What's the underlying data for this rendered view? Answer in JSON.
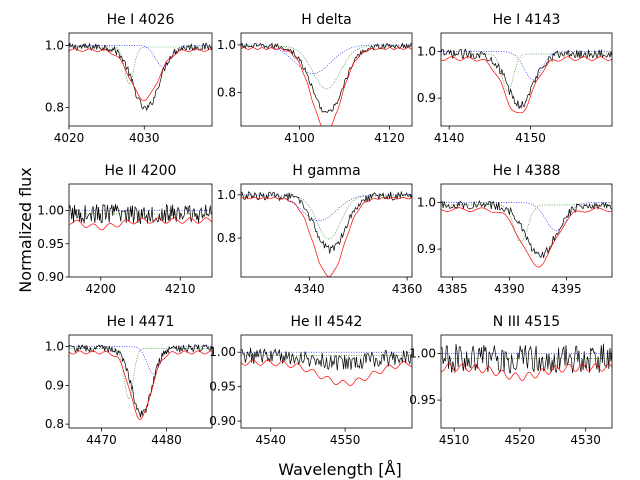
{
  "figure": {
    "xlabel": "Wavelength [Å]",
    "ylabel": "Normalized flux"
  },
  "chart_data": [
    {
      "type": "line",
      "title": "He I 4026",
      "center": 4030.0,
      "xlim": [
        4020,
        4039
      ],
      "ylim": [
        0.74,
        1.04
      ],
      "xticks": [
        4020,
        4030
      ],
      "yticks": [
        0.8,
        1.0
      ],
      "ytick_labels": [
        "0.8",
        "1.0"
      ],
      "obs_depth": 0.2,
      "obs_width": 1.7,
      "obs_noise": 0.012,
      "red_depth": 0.16,
      "red_width": 1.8,
      "green_depth": 0.12,
      "green_width": 0.6,
      "green_offset": -2.0,
      "blue_depth": 0.07,
      "blue_width": 1.0,
      "blue_offset": 2.5
    },
    {
      "type": "line",
      "title": "H delta",
      "center": 4106.0,
      "xlim": [
        4087,
        4125
      ],
      "ylim": [
        0.66,
        1.05
      ],
      "xticks": [
        4100,
        4120
      ],
      "yticks": [
        0.8,
        1.0
      ],
      "ytick_labels": [
        "0.8",
        "1.0"
      ],
      "obs_depth": 0.28,
      "obs_width": 3.5,
      "obs_noise": 0.012,
      "red_depth": 0.34,
      "red_width": 3.3,
      "green_depth": 0.18,
      "green_width": 3.0,
      "green_offset": 0.0,
      "blue_depth": 0.12,
      "blue_width": 4.0,
      "blue_offset": -3.0
    },
    {
      "type": "line",
      "title": "He I 4143",
      "center": 4148.5,
      "xlim": [
        4139,
        4160
      ],
      "ylim": [
        0.84,
        1.04
      ],
      "xticks": [
        4140,
        4150
      ],
      "yticks": [
        0.9,
        1.0
      ],
      "ytick_labels": [
        "0.9",
        "1.0"
      ],
      "obs_depth": 0.11,
      "obs_width": 1.6,
      "obs_noise": 0.01,
      "red_depth": 0.12,
      "red_width": 1.7,
      "green_depth": 0.08,
      "green_width": 0.7,
      "green_offset": -1.3,
      "blue_depth": 0.06,
      "blue_width": 1.1,
      "blue_offset": 1.8
    },
    {
      "type": "line",
      "title": "He II 4200",
      "center": 4200.0,
      "xlim": [
        4196,
        4214
      ],
      "ylim": [
        0.9,
        1.04
      ],
      "xticks": [
        4200,
        4210
      ],
      "yticks": [
        0.9,
        0.95,
        1.0
      ],
      "ytick_labels": [
        "0.90",
        "0.95",
        "1.00"
      ],
      "obs_depth": 0.0,
      "obs_width": 1.0,
      "obs_noise": 0.015,
      "red_depth": 0.01,
      "red_width": 2.0,
      "green_depth": 0.0,
      "green_width": 1.0,
      "green_offset": 0.0,
      "blue_depth": 0.0,
      "blue_width": 1.0,
      "blue_offset": 0.0
    },
    {
      "type": "line",
      "title": "H gamma",
      "center": 4344.0,
      "xlim": [
        4326,
        4361
      ],
      "ylim": [
        0.62,
        1.05
      ],
      "xticks": [
        4340,
        4360
      ],
      "yticks": [
        0.8,
        1.0
      ],
      "ytick_labels": [
        "0.8",
        "1.0"
      ],
      "obs_depth": 0.25,
      "obs_width": 3.0,
      "obs_noise": 0.02,
      "red_depth": 0.36,
      "red_width": 3.1,
      "green_depth": 0.2,
      "green_width": 2.4,
      "green_offset": 0.0,
      "blue_depth": 0.12,
      "blue_width": 3.5,
      "blue_offset": -2.0
    },
    {
      "type": "line",
      "title": "He I 4388",
      "center": 4392.5,
      "xlim": [
        4384,
        4399
      ],
      "ylim": [
        0.84,
        1.04
      ],
      "xticks": [
        4385,
        4390,
        4395
      ],
      "yticks": [
        0.9,
        1.0
      ],
      "ytick_labels": [
        "0.9",
        "1.0"
      ],
      "obs_depth": 0.11,
      "obs_width": 1.3,
      "obs_noise": 0.009,
      "red_depth": 0.12,
      "red_width": 1.4,
      "green_depth": 0.08,
      "green_width": 0.6,
      "green_offset": -1.5,
      "blue_depth": 0.06,
      "blue_width": 0.9,
      "blue_offset": 1.6
    },
    {
      "type": "line",
      "title": "He I 4471",
      "center": 4476.0,
      "xlim": [
        4465,
        4487
      ],
      "ylim": [
        0.79,
        1.03
      ],
      "xticks": [
        4470,
        4480
      ],
      "yticks": [
        0.8,
        0.9,
        1.0
      ],
      "ytick_labels": [
        "0.8",
        "0.9",
        "1.0"
      ],
      "obs_depth": 0.17,
      "obs_width": 1.5,
      "obs_noise": 0.01,
      "red_depth": 0.17,
      "red_width": 1.6,
      "green_depth": 0.13,
      "green_width": 0.7,
      "green_offset": -1.8,
      "blue_depth": 0.07,
      "blue_width": 1.0,
      "blue_offset": 2.0
    },
    {
      "type": "line",
      "title": "He II 4542",
      "center": 4550.0,
      "xlim": [
        4536,
        4559
      ],
      "ylim": [
        0.89,
        1.025
      ],
      "xticks": [
        4540,
        4550
      ],
      "yticks": [
        0.9,
        0.95,
        1.0
      ],
      "ytick_labels": [
        "0.90",
        "0.95",
        "1.00"
      ],
      "obs_depth": 0.01,
      "obs_width": 4.0,
      "obs_noise": 0.012,
      "red_depth": 0.03,
      "red_width": 3.5,
      "green_depth": 0.0,
      "green_width": 1.0,
      "green_offset": 0.0,
      "blue_depth": 0.0,
      "blue_width": 1.0,
      "blue_offset": 0.0
    },
    {
      "type": "line",
      "title": "N III 4515",
      "center": 4520.0,
      "xlim": [
        4508,
        4534
      ],
      "ylim": [
        0.92,
        1.02
      ],
      "xticks": [
        4510,
        4520,
        4530
      ],
      "yticks": [
        0.95,
        1.0
      ],
      "ytick_labels": [
        "0.95",
        "1.00"
      ],
      "obs_depth": 0.0,
      "obs_width": 1.0,
      "obs_noise": 0.016,
      "red_depth": 0.01,
      "red_width": 3.0,
      "green_depth": 0.0,
      "green_width": 1.0,
      "green_offset": 0.0,
      "blue_depth": 0.0,
      "blue_width": 1.0,
      "blue_offset": 0.0
    }
  ]
}
